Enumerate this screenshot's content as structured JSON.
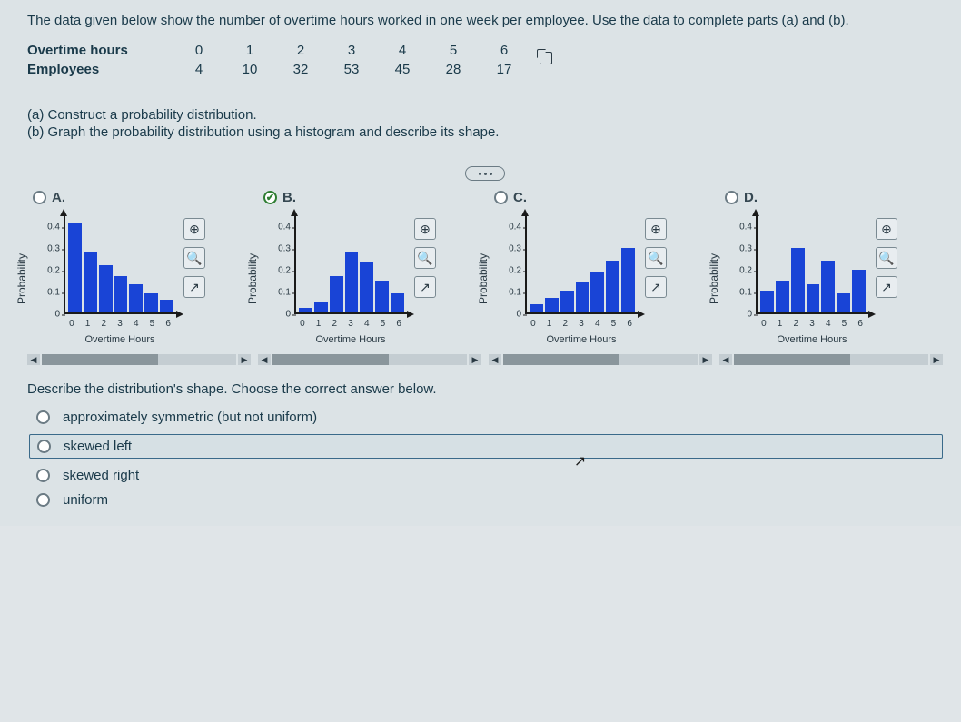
{
  "question": "The data given below show the number of overtime hours worked in one week per employee. Use the data to complete parts (a) and (b).",
  "table": {
    "rows": [
      {
        "label": "Overtime hours",
        "vals": [
          "0",
          "1",
          "2",
          "3",
          "4",
          "5",
          "6"
        ]
      },
      {
        "label": "Employees",
        "vals": [
          "4",
          "10",
          "32",
          "53",
          "45",
          "28",
          "17"
        ]
      }
    ]
  },
  "subA": "(a) Construct a probability distribution.",
  "subB": "(b) Graph the probability distribution using a histogram and describe its shape.",
  "choices": [
    {
      "letter": "A.",
      "selected": false,
      "chart": {
        "type": "bar",
        "ylabel": "Probability",
        "xlabel": "Overtime Hours",
        "y_ticks": [
          "0",
          "0.1",
          "0.2",
          "0.3",
          "0.4"
        ],
        "ymax": 0.45,
        "x_ticks": [
          "0",
          "1",
          "2",
          "3",
          "4",
          "5",
          "6"
        ],
        "values": [
          0.42,
          0.28,
          0.22,
          0.17,
          0.13,
          0.09,
          0.06
        ],
        "bar_color": "#1944d6"
      }
    },
    {
      "letter": "B.",
      "selected": true,
      "chart": {
        "type": "bar",
        "ylabel": "Probability",
        "xlabel": "Overtime Hours",
        "y_ticks": [
          "0",
          "0.1",
          "0.2",
          "0.3",
          "0.4"
        ],
        "ymax": 0.45,
        "x_ticks": [
          "0",
          "1",
          "2",
          "3",
          "4",
          "5",
          "6"
        ],
        "values": [
          0.021,
          0.053,
          0.169,
          0.28,
          0.238,
          0.148,
          0.09
        ],
        "bar_color": "#1944d6"
      }
    },
    {
      "letter": "C.",
      "selected": false,
      "chart": {
        "type": "bar",
        "ylabel": "Probability",
        "xlabel": "Overtime Hours",
        "y_ticks": [
          "0",
          "0.1",
          "0.2",
          "0.3",
          "0.4"
        ],
        "ymax": 0.45,
        "x_ticks": [
          "0",
          "1",
          "2",
          "3",
          "4",
          "5",
          "6"
        ],
        "values": [
          0.04,
          0.07,
          0.1,
          0.14,
          0.19,
          0.24,
          0.3
        ],
        "bar_color": "#1944d6"
      }
    },
    {
      "letter": "D.",
      "selected": false,
      "chart": {
        "type": "bar",
        "ylabel": "Probability",
        "xlabel": "Overtime Hours",
        "y_ticks": [
          "0",
          "0.1",
          "0.2",
          "0.3",
          "0.4"
        ],
        "ymax": 0.45,
        "x_ticks": [
          "0",
          "1",
          "2",
          "3",
          "4",
          "5",
          "6"
        ],
        "values": [
          0.1,
          0.15,
          0.3,
          0.13,
          0.24,
          0.09,
          0.2
        ],
        "bar_color": "#1944d6"
      }
    }
  ],
  "toolbar": {
    "zoom_in": "⊕",
    "zoom_out": "🔍",
    "popout": "↗"
  },
  "prompt2": "Describe the distribution's shape. Choose the correct answer below.",
  "answers": [
    {
      "text": "approximately symmetric (but not uniform)",
      "selected": false,
      "boxed": false
    },
    {
      "text": "skewed left",
      "selected": false,
      "boxed": true
    },
    {
      "text": "skewed right",
      "selected": false,
      "boxed": false
    },
    {
      "text": "uniform",
      "selected": false,
      "boxed": false
    }
  ]
}
